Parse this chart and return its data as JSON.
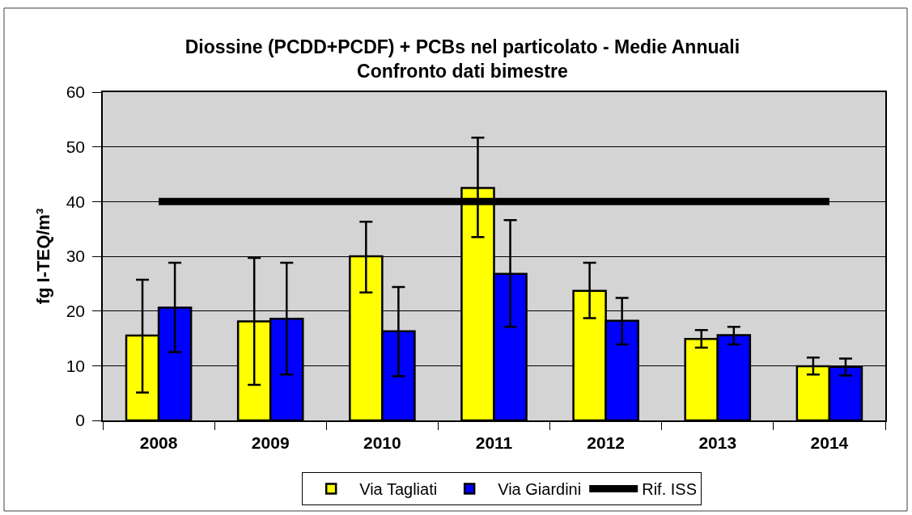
{
  "chart_data": {
    "type": "bar",
    "title": "Diossine (PCDD+PCDF) + PCBs nel particolato - Medie Annuali",
    "subtitle": "Confronto dati bimestre",
    "ylabel": "fg I-TEQ/m³",
    "categories": [
      "2008",
      "2009",
      "2010",
      "2011",
      "2012",
      "2013",
      "2014"
    ],
    "series": [
      {
        "name": "Via Tagliati",
        "color": "#ffff00",
        "values": [
          15.5,
          18.1,
          30.0,
          42.5,
          23.7,
          14.9,
          9.9
        ],
        "errors": [
          [
            5.1,
            25.7
          ],
          [
            6.5,
            29.7
          ],
          [
            23.4,
            36.3
          ],
          [
            33.5,
            51.7
          ],
          [
            18.7,
            28.8
          ],
          [
            13.3,
            16.5
          ],
          [
            8.4,
            11.5
          ]
        ]
      },
      {
        "name": "Via Giardini",
        "color": "#0000ff",
        "values": [
          20.6,
          18.6,
          16.3,
          26.8,
          18.2,
          15.6,
          9.8
        ],
        "errors": [
          [
            12.5,
            28.8
          ],
          [
            8.4,
            28.8
          ],
          [
            8.1,
            24.4
          ],
          [
            17.1,
            36.6
          ],
          [
            13.9,
            22.4
          ],
          [
            13.9,
            17.1
          ],
          [
            8.2,
            11.3
          ]
        ]
      },
      {
        "name": "Rif. ISS",
        "type": "line",
        "color": "#000000",
        "values": [
          40,
          40,
          40,
          40,
          40,
          40,
          40
        ]
      }
    ],
    "ylim": [
      0,
      60
    ],
    "yticks": [
      0,
      10,
      20,
      30,
      40,
      50,
      60
    ],
    "grid": "y",
    "legend": "bottom"
  }
}
